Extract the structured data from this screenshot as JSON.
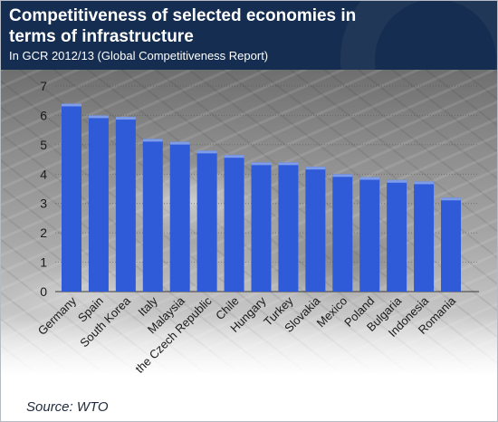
{
  "title": "Competitiveness of selected economies in terms of infrastructure",
  "subtitle": "In GCR 2012/13 (Global Competitiveness Report)",
  "source": "Source: WTO",
  "colors": {
    "header_bg": "#152d50",
    "bar": "#2f5bd9",
    "bar_top": "#7f9ce8",
    "tick_text": "#1a1a1a"
  },
  "chart_data": {
    "type": "bar",
    "title": "Competitiveness of selected economies in terms of infrastructure",
    "subtitle": "In GCR 2012/13 (Global Competitiveness Report)",
    "categories": [
      "Germany",
      "Spain",
      "South Korea",
      "Italy",
      "Malaysia",
      "the Czech Republic",
      "Chile",
      "Hungary",
      "Turkey",
      "Slovakia",
      "Mexico",
      "Poland",
      "Bulgaria",
      "Indonesia",
      "Romania"
    ],
    "values": [
      6.4,
      6.0,
      5.95,
      5.2,
      5.1,
      4.8,
      4.65,
      4.4,
      4.4,
      4.25,
      4.0,
      3.9,
      3.8,
      3.75,
      3.2
    ],
    "yticks": [
      0,
      1,
      2,
      3,
      4,
      5,
      6,
      7
    ],
    "ylim": [
      0,
      7
    ],
    "xlabel": "",
    "ylabel": "",
    "grid": true,
    "legend": "none"
  }
}
